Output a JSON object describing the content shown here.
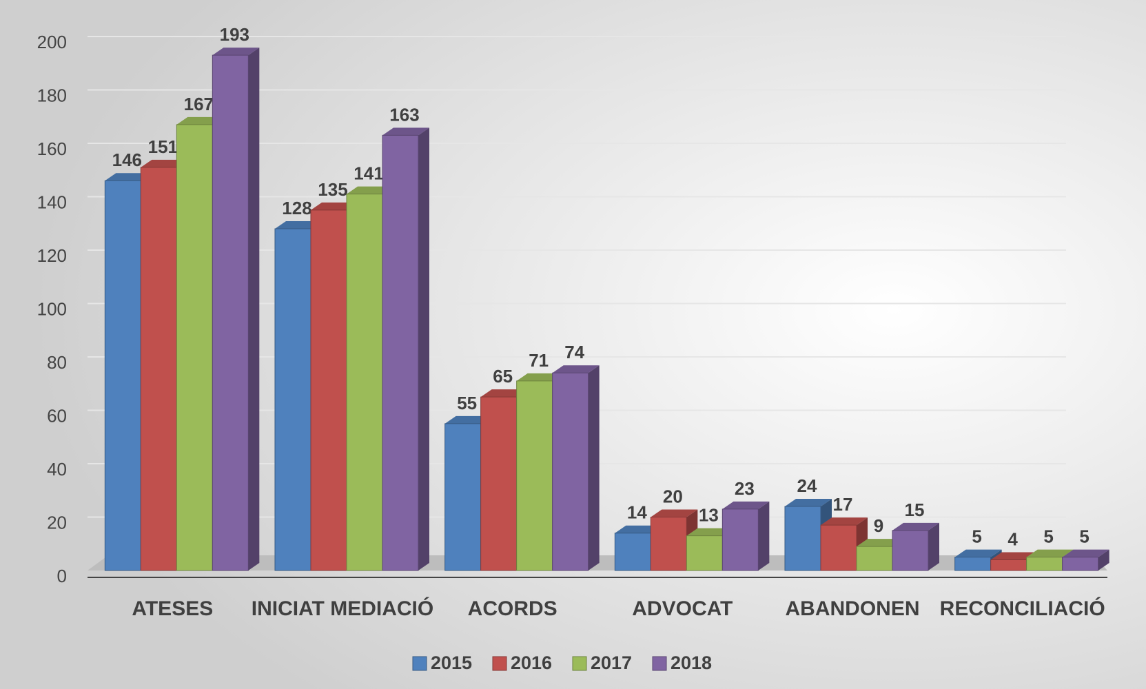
{
  "chart_data": {
    "type": "bar3d",
    "categories": [
      "ATESES",
      "INICIAT MEDIACIÓ",
      "ACORDS",
      "ADVOCAT",
      "ABANDONEN",
      "RECONCILIACIÓ"
    ],
    "series": [
      {
        "name": "2015",
        "color": "#4f81bd",
        "values": [
          146,
          128,
          55,
          14,
          24,
          5
        ]
      },
      {
        "name": "2016",
        "color": "#c0504d",
        "values": [
          151,
          135,
          65,
          20,
          17,
          4
        ]
      },
      {
        "name": "2017",
        "color": "#9bbb59",
        "values": [
          167,
          141,
          71,
          13,
          9,
          5
        ]
      },
      {
        "name": "2018",
        "color": "#8064a2",
        "values": [
          193,
          163,
          74,
          23,
          15,
          5
        ]
      }
    ],
    "ylim": [
      0,
      200
    ],
    "yticks": [
      0,
      20,
      40,
      60,
      80,
      100,
      120,
      140,
      160,
      180,
      200
    ],
    "grid": true,
    "legend": "bottom"
  }
}
